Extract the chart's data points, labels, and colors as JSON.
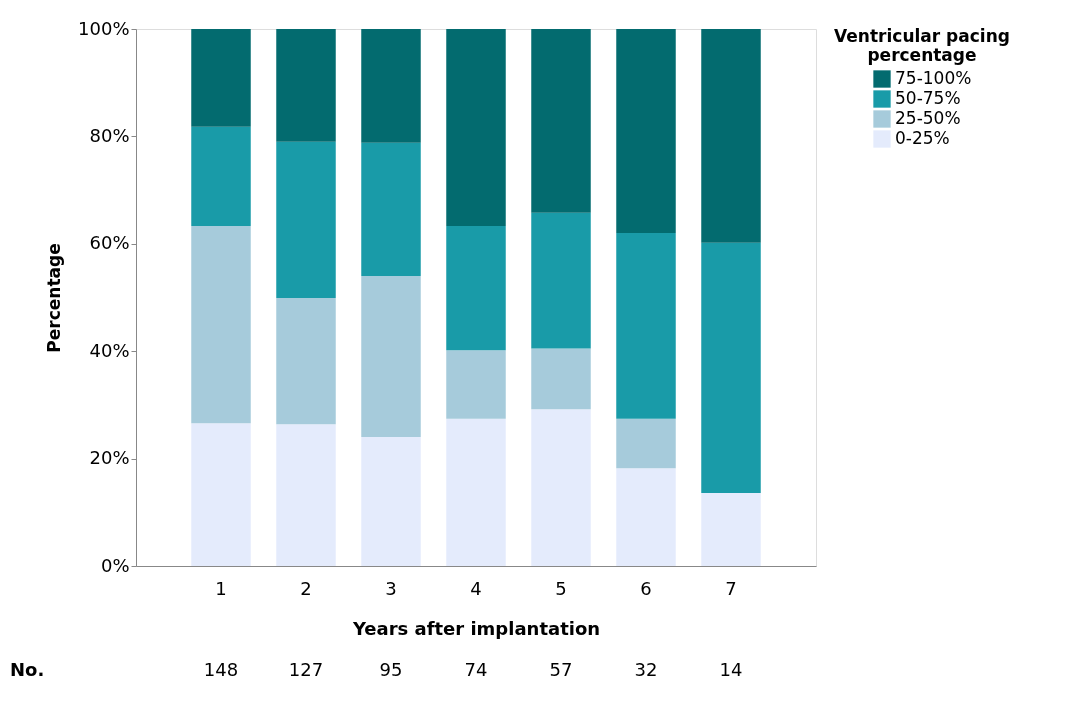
{
  "chart_data": {
    "type": "bar",
    "stacked": true,
    "xlabel": "Years after implantation",
    "ylabel": "Percentage",
    "legend_title": "Ventricular pacing percentage",
    "legend": "top right",
    "grid": false,
    "categories": [
      "1",
      "2",
      "3",
      "4",
      "5",
      "6",
      "7"
    ],
    "ylim": [
      0,
      100
    ],
    "yticks": [
      {
        "value": 0,
        "label": "0%"
      },
      {
        "value": 20,
        "label": "20%"
      },
      {
        "value": 40,
        "label": "40%"
      },
      {
        "value": 60,
        "label": "60%"
      },
      {
        "value": 80,
        "label": "80%"
      },
      {
        "value": 100,
        "label": "100%"
      }
    ],
    "series": [
      {
        "name": "0-25%",
        "color": "#e4ebfc",
        "values": [
          26.6,
          26.4,
          24.0,
          27.4,
          29.2,
          18.2,
          13.6
        ]
      },
      {
        "name": "25-50%",
        "color": "#a6cbdb",
        "values": [
          36.7,
          23.5,
          30.0,
          12.8,
          11.3,
          9.2,
          0
        ]
      },
      {
        "name": "50-75%",
        "color": "#199ba8",
        "values": [
          18.5,
          29.1,
          24.8,
          23.1,
          25.3,
          34.6,
          46.6
        ]
      },
      {
        "name": "75-100%",
        "color": "#036b6f",
        "values": [
          18.2,
          21.0,
          21.2,
          36.7,
          34.2,
          38.0,
          39.8
        ]
      }
    ],
    "annotations": [
      "No.",
      "148",
      "127",
      "95",
      "74",
      "57",
      "32",
      "14"
    ]
  }
}
